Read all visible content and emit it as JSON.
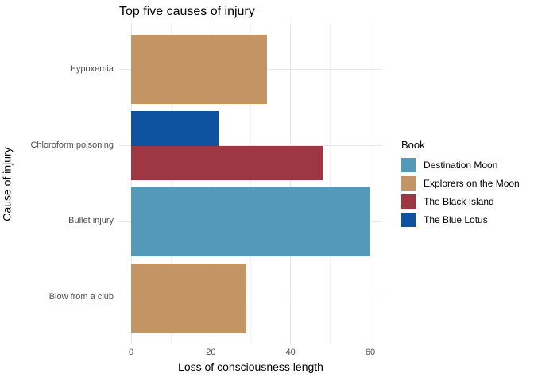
{
  "styles": {
    "background": "#ffffff",
    "grid_major_color": "#e7e7e7",
    "grid_minor_color": "#f1f1f1",
    "tick_label_color": "#4d4d4d",
    "text_color": "#000000"
  },
  "chart_data": {
    "type": "bar",
    "orientation": "horizontal",
    "title": "Top five causes of injury",
    "xlabel": "Loss of consciousness length",
    "ylabel": "Cause of injury",
    "xlim": [
      -3,
      63
    ],
    "x_ticks": [
      0,
      20,
      40,
      60
    ],
    "x_minor_ticks": [
      10,
      30,
      50
    ],
    "grid": true,
    "legend": {
      "title": "Book",
      "position": "right",
      "entries": [
        {
          "label": "Destination Moon",
          "color": "#549ab8"
        },
        {
          "label": "Explorers on the Moon",
          "color": "#c39564"
        },
        {
          "label": "The Black Island",
          "color": "#9e3644"
        },
        {
          "label": "The Blue Lotus",
          "color": "#0e52a0"
        }
      ]
    },
    "categories": [
      "Hypoxemia",
      "Chloroform poisoning",
      "Bullet injury",
      "Blow from a club"
    ],
    "rows": [
      {
        "category": "Hypoxemia",
        "bars": [
          {
            "series": "Explorers on the Moon",
            "value": 34
          }
        ]
      },
      {
        "category": "Chloroform poisoning",
        "bars": [
          {
            "series": "The Blue Lotus",
            "value": 22
          },
          {
            "series": "The Black Island",
            "value": 48
          }
        ]
      },
      {
        "category": "Bullet injury",
        "bars": [
          {
            "series": "Destination Moon",
            "value": 60
          }
        ]
      },
      {
        "category": "Blow from a club",
        "bars": [
          {
            "series": "Explorers on the Moon",
            "value": 29
          }
        ]
      }
    ]
  }
}
